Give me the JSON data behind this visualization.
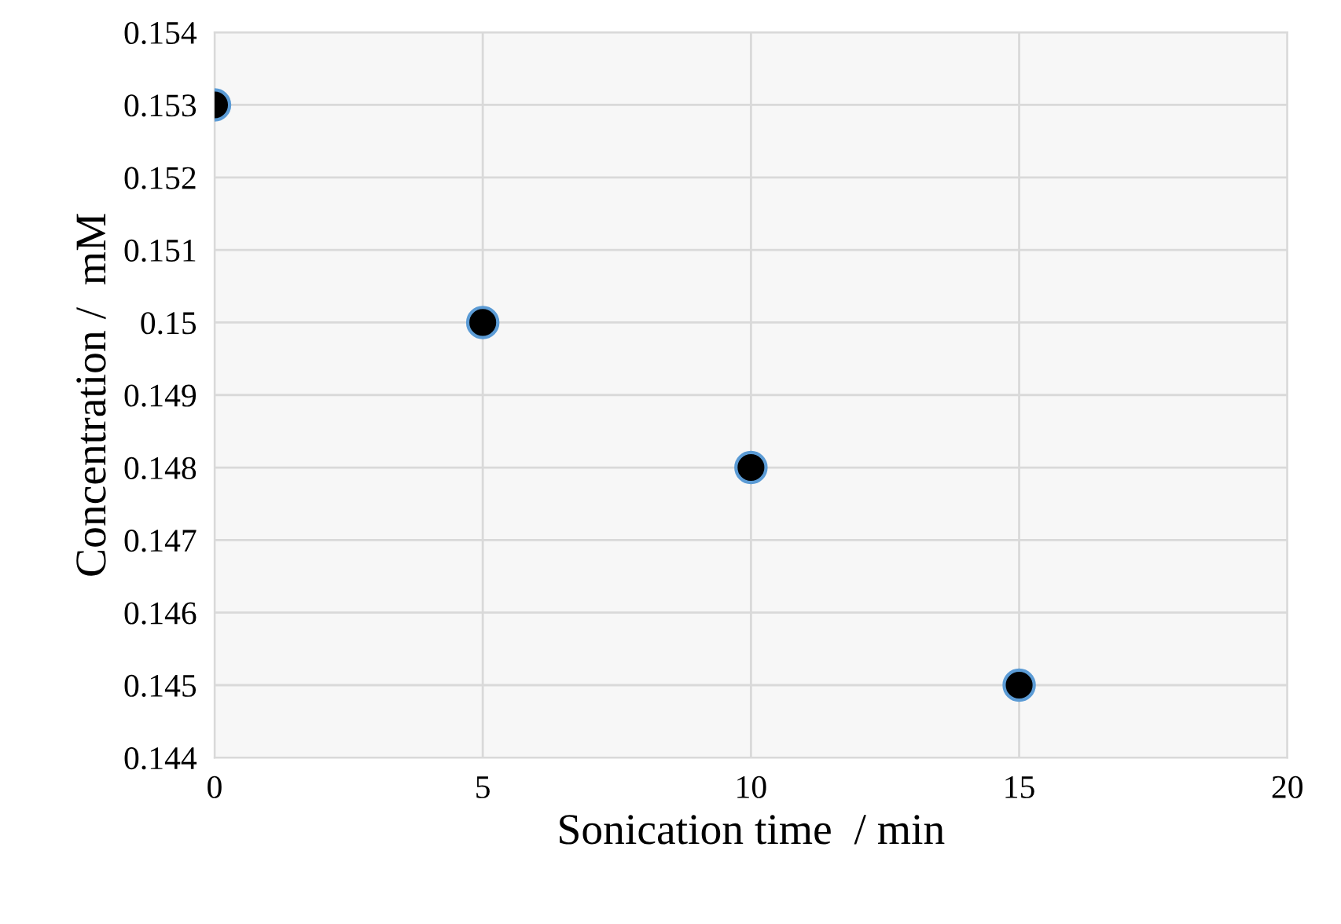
{
  "chart_data": {
    "type": "scatter",
    "xlabel": "Sonication time  / min",
    "ylabel": "Concentration /  mM",
    "x": [
      0,
      5,
      10,
      15
    ],
    "series": [
      {
        "color": "#000000",
        "values": [
          0.153,
          0.15,
          0.148,
          0.145
        ]
      }
    ],
    "xlim": [
      0,
      20
    ],
    "xticks": [
      0,
      5,
      10,
      15,
      20
    ],
    "ylim": [
      0.144,
      0.154
    ],
    "yticks": [
      0.144,
      0.145,
      0.146,
      0.147,
      0.148,
      0.149,
      0.15,
      0.151,
      0.152,
      0.153,
      0.154
    ],
    "grid": true,
    "marker": "circle",
    "legend": false
  }
}
